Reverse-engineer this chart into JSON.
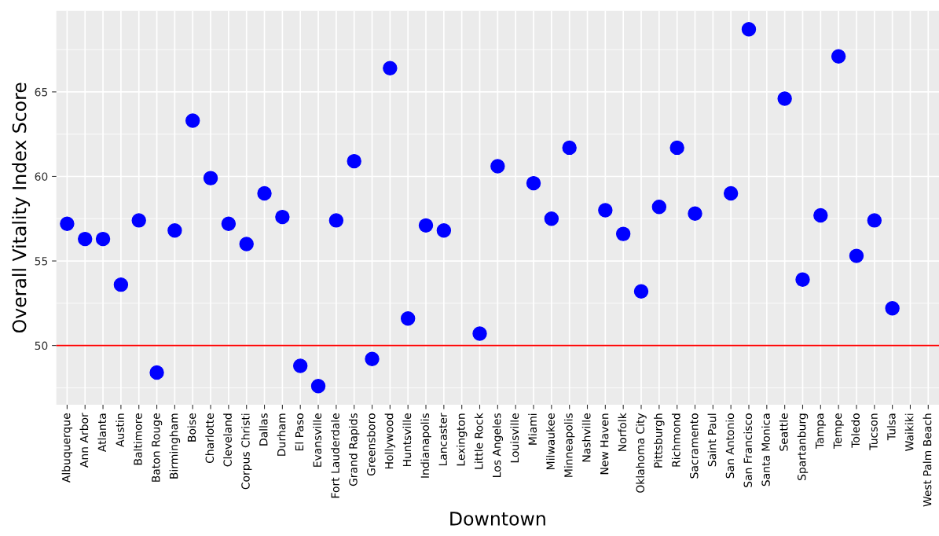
{
  "chart_data": {
    "type": "scatter",
    "xlabel": "Downtown",
    "ylabel": "Overall Vitality Index Score",
    "categories": [
      "Albuquerque",
      "Ann Arbor",
      "Atlanta",
      "Austin",
      "Baltimore",
      "Baton Rouge",
      "Birmingham",
      "Boise",
      "Charlotte",
      "Cleveland",
      "Corpus Christi",
      "Dallas",
      "Durham",
      "El Paso",
      "Evansville",
      "Fort Lauderdale",
      "Grand Rapids",
      "Greensboro",
      "Hollywood",
      "Huntsville",
      "Indianapolis",
      "Lancaster",
      "Lexington",
      "Little Rock",
      "Los Angeles",
      "Louisville",
      "Miami",
      "Milwaukee",
      "Minneapolis",
      "Nashville",
      "New Haven",
      "Norfolk",
      "Oklahoma City",
      "Pittsburgh",
      "Richmond",
      "Sacramento",
      "Saint Paul",
      "San Antonio",
      "San Francisco",
      "Santa Monica",
      "Seattle",
      "Spartanburg",
      "Tampa",
      "Tempe",
      "Toledo",
      "Tucson",
      "Tulsa",
      "Waikiki",
      "West Palm Beach"
    ],
    "series": [
      {
        "color": "#0000ff",
        "values": [
          57.2,
          56.3,
          56.3,
          53.6,
          57.4,
          48.4,
          56.8,
          63.3,
          59.9,
          57.2,
          56.0,
          59.0,
          57.6,
          48.8,
          47.6,
          57.4,
          60.9,
          49.2,
          66.4,
          51.6,
          57.1,
          56.8,
          null,
          50.7,
          60.6,
          null,
          59.6,
          57.5,
          61.7,
          null,
          58.0,
          56.6,
          53.2,
          58.2,
          61.7,
          57.8,
          null,
          59.0,
          68.7,
          null,
          64.6,
          53.9,
          57.7,
          67.1,
          55.3,
          57.4,
          52.2,
          null,
          null
        ]
      }
    ],
    "ylim": [
      46.5,
      69.8
    ],
    "yticks": [
      50,
      55,
      60,
      65
    ],
    "ref_lines": [
      {
        "axis": "y",
        "value": 50,
        "color": "#ff0000"
      }
    ],
    "grid": true,
    "marker": "circle"
  }
}
